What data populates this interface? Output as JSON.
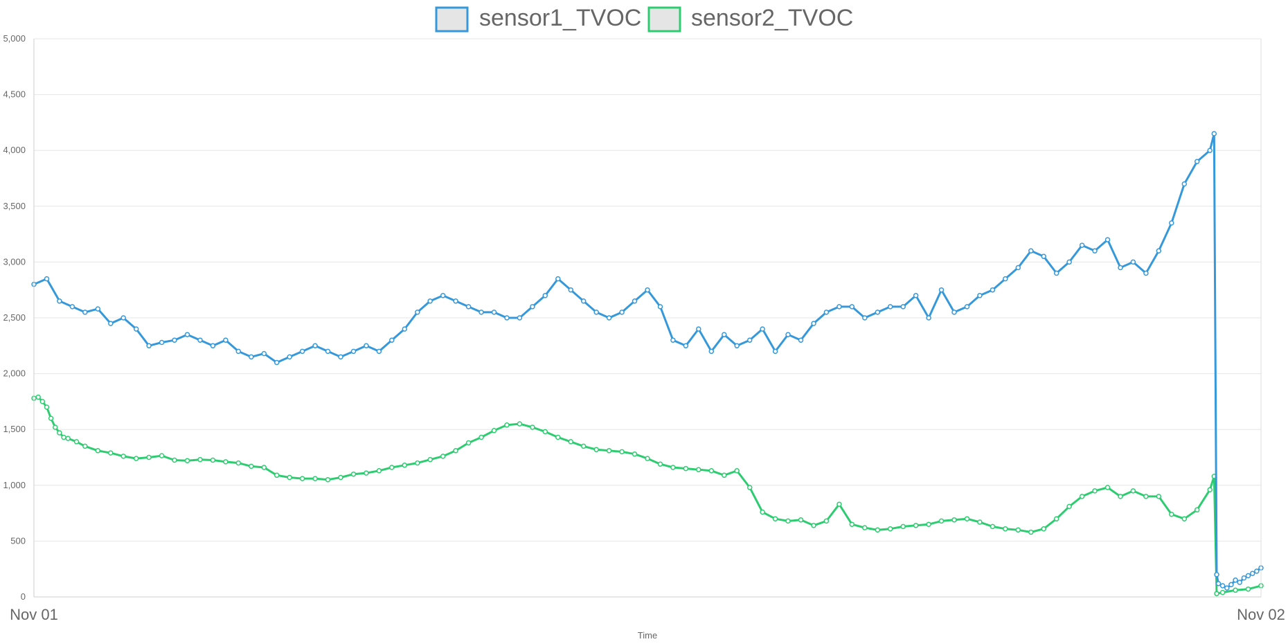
{
  "chart_data": {
    "type": "line",
    "title": "",
    "xlabel": "Time",
    "ylabel": "",
    "x_ticks": [
      "Nov 01",
      "Nov 02"
    ],
    "y_ticks": [
      "0",
      "500",
      "1,000",
      "1,500",
      "2,000",
      "2,500",
      "3,000",
      "3,500",
      "4,000",
      "4,500",
      "5,000"
    ],
    "ylim": [
      0,
      5000
    ],
    "grid": true,
    "legend_position": "top",
    "series": [
      {
        "name": "sensor1_TVOC",
        "color": "#3498db",
        "points": [
          [
            "00:00",
            2800
          ],
          [
            "00:15",
            2850
          ],
          [
            "00:30",
            2650
          ],
          [
            "00:45",
            2600
          ],
          [
            "01:00",
            2550
          ],
          [
            "01:15",
            2580
          ],
          [
            "01:30",
            2450
          ],
          [
            "01:45",
            2500
          ],
          [
            "02:00",
            2400
          ],
          [
            "02:15",
            2250
          ],
          [
            "02:30",
            2280
          ],
          [
            "02:45",
            2300
          ],
          [
            "03:00",
            2350
          ],
          [
            "03:15",
            2300
          ],
          [
            "03:30",
            2250
          ],
          [
            "03:45",
            2300
          ],
          [
            "04:00",
            2200
          ],
          [
            "04:15",
            2150
          ],
          [
            "04:30",
            2180
          ],
          [
            "04:45",
            2100
          ],
          [
            "05:00",
            2150
          ],
          [
            "05:15",
            2200
          ],
          [
            "05:30",
            2250
          ],
          [
            "05:45",
            2200
          ],
          [
            "06:00",
            2150
          ],
          [
            "06:15",
            2200
          ],
          [
            "06:30",
            2250
          ],
          [
            "06:45",
            2200
          ],
          [
            "07:00",
            2300
          ],
          [
            "07:15",
            2400
          ],
          [
            "07:30",
            2550
          ],
          [
            "07:45",
            2650
          ],
          [
            "08:00",
            2700
          ],
          [
            "08:15",
            2650
          ],
          [
            "08:30",
            2600
          ],
          [
            "08:45",
            2550
          ],
          [
            "09:00",
            2550
          ],
          [
            "09:15",
            2500
          ],
          [
            "09:30",
            2500
          ],
          [
            "09:45",
            2600
          ],
          [
            "10:00",
            2700
          ],
          [
            "10:15",
            2850
          ],
          [
            "10:30",
            2750
          ],
          [
            "10:45",
            2650
          ],
          [
            "11:00",
            2550
          ],
          [
            "11:15",
            2500
          ],
          [
            "11:30",
            2550
          ],
          [
            "11:45",
            2650
          ],
          [
            "12:00",
            2750
          ],
          [
            "12:15",
            2600
          ],
          [
            "12:30",
            2300
          ],
          [
            "12:45",
            2250
          ],
          [
            "13:00",
            2400
          ],
          [
            "13:15",
            2200
          ],
          [
            "13:30",
            2350
          ],
          [
            "13:45",
            2250
          ],
          [
            "14:00",
            2300
          ],
          [
            "14:15",
            2400
          ],
          [
            "14:30",
            2200
          ],
          [
            "14:45",
            2350
          ],
          [
            "15:00",
            2300
          ],
          [
            "15:15",
            2450
          ],
          [
            "15:30",
            2550
          ],
          [
            "15:45",
            2600
          ],
          [
            "16:00",
            2600
          ],
          [
            "16:15",
            2500
          ],
          [
            "16:30",
            2550
          ],
          [
            "16:45",
            2600
          ],
          [
            "17:00",
            2600
          ],
          [
            "17:15",
            2700
          ],
          [
            "17:30",
            2500
          ],
          [
            "17:45",
            2750
          ],
          [
            "18:00",
            2550
          ],
          [
            "18:15",
            2600
          ],
          [
            "18:30",
            2700
          ],
          [
            "18:45",
            2750
          ],
          [
            "19:00",
            2850
          ],
          [
            "19:15",
            2950
          ],
          [
            "19:30",
            3100
          ],
          [
            "19:45",
            3050
          ],
          [
            "20:00",
            2900
          ],
          [
            "20:15",
            3000
          ],
          [
            "20:30",
            3150
          ],
          [
            "20:45",
            3100
          ],
          [
            "21:00",
            3200
          ],
          [
            "21:15",
            2950
          ],
          [
            "21:30",
            3000
          ],
          [
            "21:45",
            2900
          ],
          [
            "22:00",
            3100
          ],
          [
            "22:15",
            3350
          ],
          [
            "22:30",
            3700
          ],
          [
            "22:45",
            3900
          ],
          [
            "23:00",
            4000
          ],
          [
            "23:05",
            4150
          ],
          [
            "23:08",
            200
          ],
          [
            "23:10",
            120
          ],
          [
            "23:15",
            100
          ],
          [
            "23:20",
            80
          ],
          [
            "23:25",
            110
          ],
          [
            "23:30",
            150
          ],
          [
            "23:35",
            130
          ],
          [
            "23:40",
            170
          ],
          [
            "23:45",
            190
          ],
          [
            "23:50",
            210
          ],
          [
            "23:55",
            230
          ],
          [
            "24:00",
            260
          ]
        ]
      },
      {
        "name": "sensor2_TVOC",
        "color": "#2ecc71",
        "points": [
          [
            "00:00",
            1780
          ],
          [
            "00:05",
            1790
          ],
          [
            "00:10",
            1750
          ],
          [
            "00:15",
            1700
          ],
          [
            "00:20",
            1600
          ],
          [
            "00:25",
            1520
          ],
          [
            "00:30",
            1470
          ],
          [
            "00:35",
            1430
          ],
          [
            "00:40",
            1420
          ],
          [
            "00:50",
            1390
          ],
          [
            "01:00",
            1350
          ],
          [
            "01:15",
            1310
          ],
          [
            "01:30",
            1290
          ],
          [
            "01:45",
            1260
          ],
          [
            "02:00",
            1240
          ],
          [
            "02:15",
            1250
          ],
          [
            "02:30",
            1265
          ],
          [
            "02:45",
            1225
          ],
          [
            "03:00",
            1220
          ],
          [
            "03:15",
            1230
          ],
          [
            "03:30",
            1225
          ],
          [
            "03:45",
            1210
          ],
          [
            "04:00",
            1200
          ],
          [
            "04:15",
            1170
          ],
          [
            "04:30",
            1160
          ],
          [
            "04:45",
            1090
          ],
          [
            "05:00",
            1070
          ],
          [
            "05:15",
            1060
          ],
          [
            "05:30",
            1060
          ],
          [
            "05:45",
            1050
          ],
          [
            "06:00",
            1070
          ],
          [
            "06:15",
            1100
          ],
          [
            "06:30",
            1110
          ],
          [
            "06:45",
            1130
          ],
          [
            "07:00",
            1160
          ],
          [
            "07:15",
            1180
          ],
          [
            "07:30",
            1200
          ],
          [
            "07:45",
            1230
          ],
          [
            "08:00",
            1260
          ],
          [
            "08:15",
            1310
          ],
          [
            "08:30",
            1380
          ],
          [
            "08:45",
            1430
          ],
          [
            "09:00",
            1490
          ],
          [
            "09:15",
            1540
          ],
          [
            "09:30",
            1550
          ],
          [
            "09:45",
            1520
          ],
          [
            "10:00",
            1480
          ],
          [
            "10:15",
            1430
          ],
          [
            "10:30",
            1390
          ],
          [
            "10:45",
            1350
          ],
          [
            "11:00",
            1320
          ],
          [
            "11:15",
            1310
          ],
          [
            "11:30",
            1300
          ],
          [
            "11:45",
            1280
          ],
          [
            "12:00",
            1240
          ],
          [
            "12:15",
            1190
          ],
          [
            "12:30",
            1160
          ],
          [
            "12:45",
            1150
          ],
          [
            "13:00",
            1140
          ],
          [
            "13:15",
            1130
          ],
          [
            "13:30",
            1090
          ],
          [
            "13:45",
            1130
          ],
          [
            "14:00",
            980
          ],
          [
            "14:15",
            760
          ],
          [
            "14:30",
            700
          ],
          [
            "14:45",
            680
          ],
          [
            "15:00",
            690
          ],
          [
            "15:15",
            640
          ],
          [
            "15:30",
            680
          ],
          [
            "15:45",
            830
          ],
          [
            "16:00",
            650
          ],
          [
            "16:15",
            620
          ],
          [
            "16:30",
            600
          ],
          [
            "16:45",
            610
          ],
          [
            "17:00",
            630
          ],
          [
            "17:15",
            640
          ],
          [
            "17:30",
            650
          ],
          [
            "17:45",
            680
          ],
          [
            "18:00",
            690
          ],
          [
            "18:15",
            700
          ],
          [
            "18:30",
            670
          ],
          [
            "18:45",
            630
          ],
          [
            "19:00",
            610
          ],
          [
            "19:15",
            600
          ],
          [
            "19:30",
            580
          ],
          [
            "19:45",
            610
          ],
          [
            "20:00",
            700
          ],
          [
            "20:15",
            810
          ],
          [
            "20:30",
            900
          ],
          [
            "20:45",
            950
          ],
          [
            "21:00",
            980
          ],
          [
            "21:15",
            900
          ],
          [
            "21:30",
            950
          ],
          [
            "21:45",
            900
          ],
          [
            "22:00",
            900
          ],
          [
            "22:15",
            740
          ],
          [
            "22:30",
            700
          ],
          [
            "22:45",
            780
          ],
          [
            "23:00",
            960
          ],
          [
            "23:05",
            1080
          ],
          [
            "23:08",
            30
          ],
          [
            "23:15",
            40
          ],
          [
            "23:30",
            60
          ],
          [
            "23:45",
            70
          ],
          [
            "24:00",
            100
          ]
        ]
      }
    ]
  }
}
